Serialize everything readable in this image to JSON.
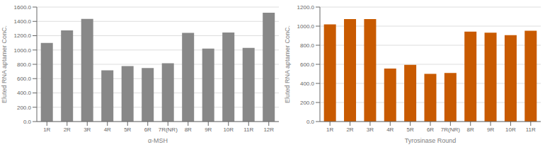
{
  "chart_data": [
    {
      "type": "bar",
      "categories": [
        "1R",
        "2R",
        "3R",
        "4R",
        "5R",
        "6R",
        "7R(NR)",
        "8R",
        "9R",
        "10R",
        "11R",
        "12R"
      ],
      "values": [
        1100,
        1275,
        1435,
        715,
        775,
        748,
        815,
        1240,
        1020,
        1245,
        1030,
        1520
      ],
      "color": "#888888",
      "xlabel": "α-MSH",
      "ylabel": "Eluted RNA aptamer ConC.",
      "ylim": [
        0,
        1600
      ],
      "yticks": [
        {
          "value": 0,
          "label": "0.0"
        },
        {
          "value": 200,
          "label": "200.0"
        },
        {
          "value": 400,
          "label": "400.0"
        },
        {
          "value": 600,
          "label": "600.0"
        },
        {
          "value": 800,
          "label": "800.0"
        },
        {
          "value": 1000,
          "label": "1000.0"
        },
        {
          "value": 1200,
          "label": "1200.0"
        },
        {
          "value": 1400,
          "label": "1400.0"
        },
        {
          "value": 1600,
          "label": "1600.0"
        }
      ],
      "grid": true
    },
    {
      "type": "bar",
      "categories": [
        "1R",
        "2R",
        "3R",
        "4R",
        "5R",
        "6R",
        "7R(NR)",
        "8R",
        "9R",
        "10R",
        "11R"
      ],
      "values": [
        1018,
        1075,
        1075,
        555,
        595,
        500,
        510,
        942,
        932,
        905,
        952
      ],
      "color": "#C85A00",
      "xlabel": "Tyrosinase Round",
      "ylabel": "Eluted RNA aptamer ConC.",
      "ylim": [
        0,
        1200
      ],
      "yticks": [
        {
          "value": 0,
          "label": "0.0"
        },
        {
          "value": 200,
          "label": "200.0"
        },
        {
          "value": 400,
          "label": "400.0"
        },
        {
          "value": 600,
          "label": "600.0"
        },
        {
          "value": 800,
          "label": "800.0"
        },
        {
          "value": 1000,
          "label": "1000.0"
        },
        {
          "value": 1200,
          "label": "1200.0"
        }
      ],
      "grid": true
    }
  ]
}
